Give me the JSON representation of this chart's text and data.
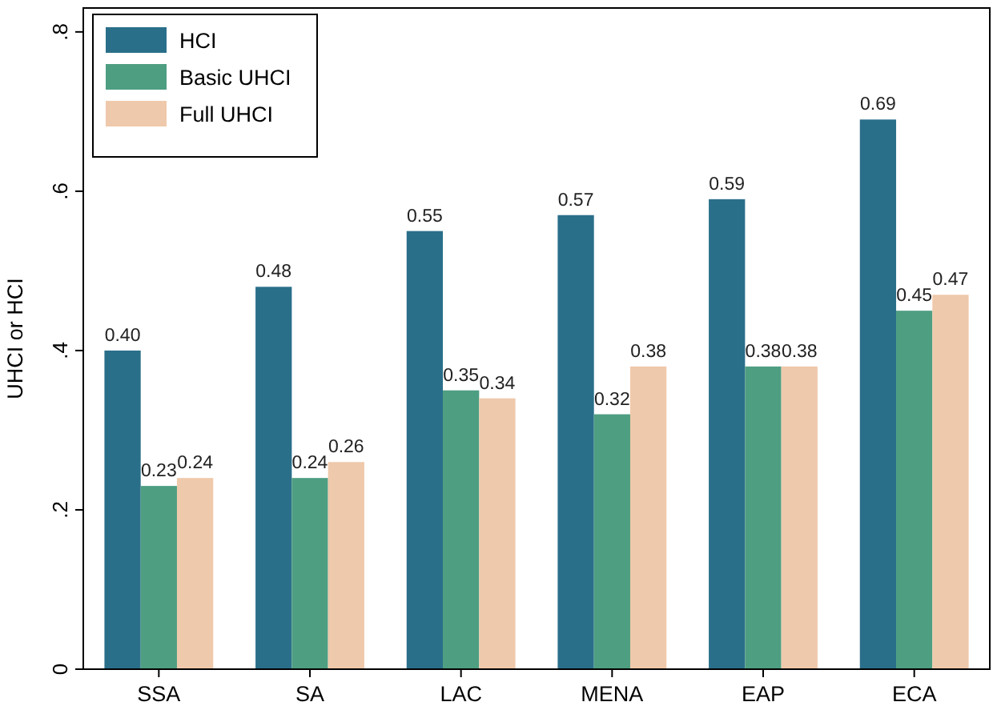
{
  "chart_data": {
    "type": "bar",
    "ylabel": "UHCI or HCI",
    "categories": [
      "SSA",
      "SA",
      "LAC",
      "MENA",
      "EAP",
      "ECA"
    ],
    "series": [
      {
        "name": "HCI",
        "color": "#2a6f8a",
        "values": [
          0.4,
          0.48,
          0.55,
          0.57,
          0.59,
          0.69
        ],
        "value_labels": [
          "0.40",
          "0.48",
          "0.55",
          "0.57",
          "0.59",
          "0.69"
        ]
      },
      {
        "name": "Basic UHCI",
        "color": "#4e9e82",
        "values": [
          0.23,
          0.24,
          0.35,
          0.32,
          0.38,
          0.45
        ],
        "value_labels": [
          "0.23",
          "0.24",
          "0.35",
          "0.32",
          "0.38",
          "0.45"
        ]
      },
      {
        "name": "Full UHCI",
        "color": "#efc9ab",
        "values": [
          0.24,
          0.26,
          0.34,
          0.38,
          0.38,
          0.47
        ],
        "value_labels": [
          "0.24",
          "0.26",
          "0.34",
          "0.38",
          "0.38",
          "0.47"
        ]
      }
    ],
    "ylim": [
      0,
      0.83
    ],
    "yticks": [
      {
        "value": 0,
        "label": "0"
      },
      {
        "value": 0.2,
        "label": ".2"
      },
      {
        "value": 0.4,
        "label": ".4"
      },
      {
        "value": 0.6,
        "label": ".6"
      },
      {
        "value": 0.8,
        "label": ".8"
      }
    ],
    "grid": false,
    "legend": "top left"
  }
}
